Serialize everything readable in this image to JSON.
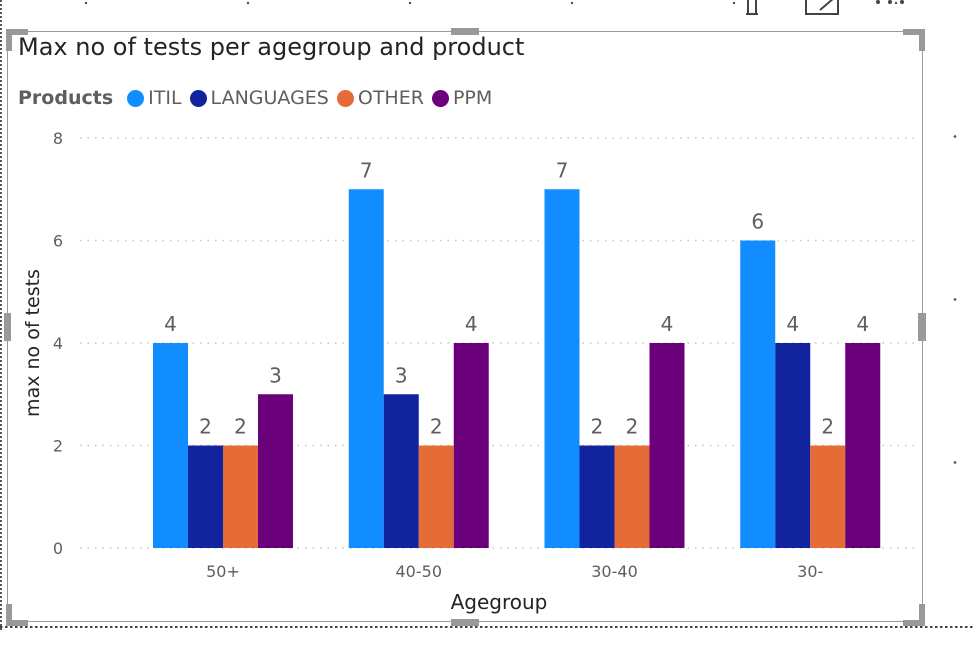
{
  "chart_data": {
    "type": "bar",
    "title": "Max no of tests per agegroup and product",
    "xlabel": "Agegroup",
    "ylabel": "max no of tests",
    "legend_title": "Products",
    "legend_position": "top-left",
    "grid": true,
    "ylim": [
      0,
      8
    ],
    "yticks": [
      "0",
      "2",
      "4",
      "6",
      "8"
    ],
    "categories": [
      "50+",
      "40-50",
      "30-40",
      "30-"
    ],
    "series": [
      {
        "name": "ITIL",
        "color": "#118DFF",
        "values": [
          4,
          7,
          7,
          6
        ]
      },
      {
        "name": "LANGUAGES",
        "color": "#12239E",
        "values": [
          2,
          3,
          2,
          4
        ]
      },
      {
        "name": "OTHER",
        "color": "#E66C37",
        "values": [
          2,
          2,
          2,
          2
        ]
      },
      {
        "name": "PPM",
        "color": "#6B007B",
        "values": [
          3,
          4,
          4,
          4
        ]
      }
    ]
  },
  "icons": {
    "pin": "pin-icon",
    "focus": "focus-mode-icon",
    "more": "more-options-icon"
  }
}
